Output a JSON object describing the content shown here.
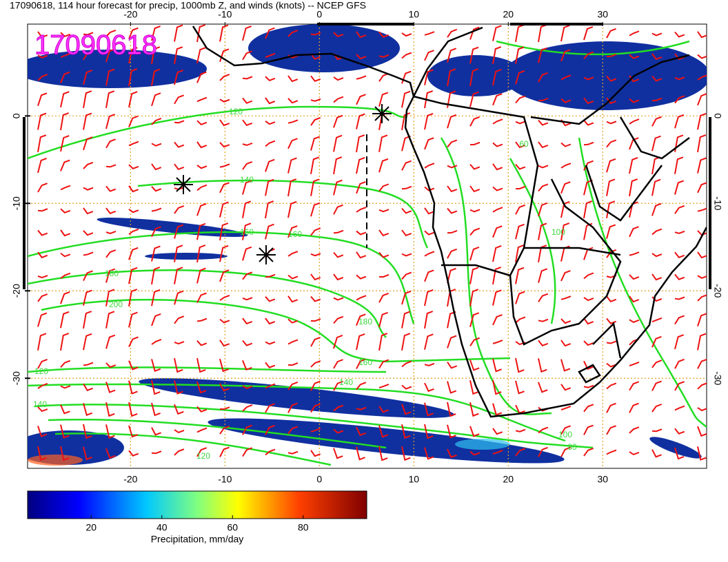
{
  "title": "17090618, 114 hour forecast for precip, 1000mb Z, and winds (knots) -- NCEP GFS",
  "stamp": "17090618",
  "map": {
    "lonlim": [
      -30.9,
      41
    ],
    "latlim": [
      10.5,
      -40.3
    ],
    "lon_ticks": [
      -20,
      -10,
      0,
      10,
      20,
      30
    ],
    "lat_ticks": [
      0,
      -10,
      -20,
      -30
    ],
    "contour_labels": [
      120,
      140,
      160,
      160,
      180,
      200,
      180,
      160,
      140,
      60,
      100,
      100,
      80,
      120,
      120,
      140
    ]
  },
  "colorbar": {
    "lim": [
      2,
      98
    ],
    "ticks": [
      20,
      40,
      60,
      80
    ],
    "label": "Precipitation, mm/day"
  }
}
